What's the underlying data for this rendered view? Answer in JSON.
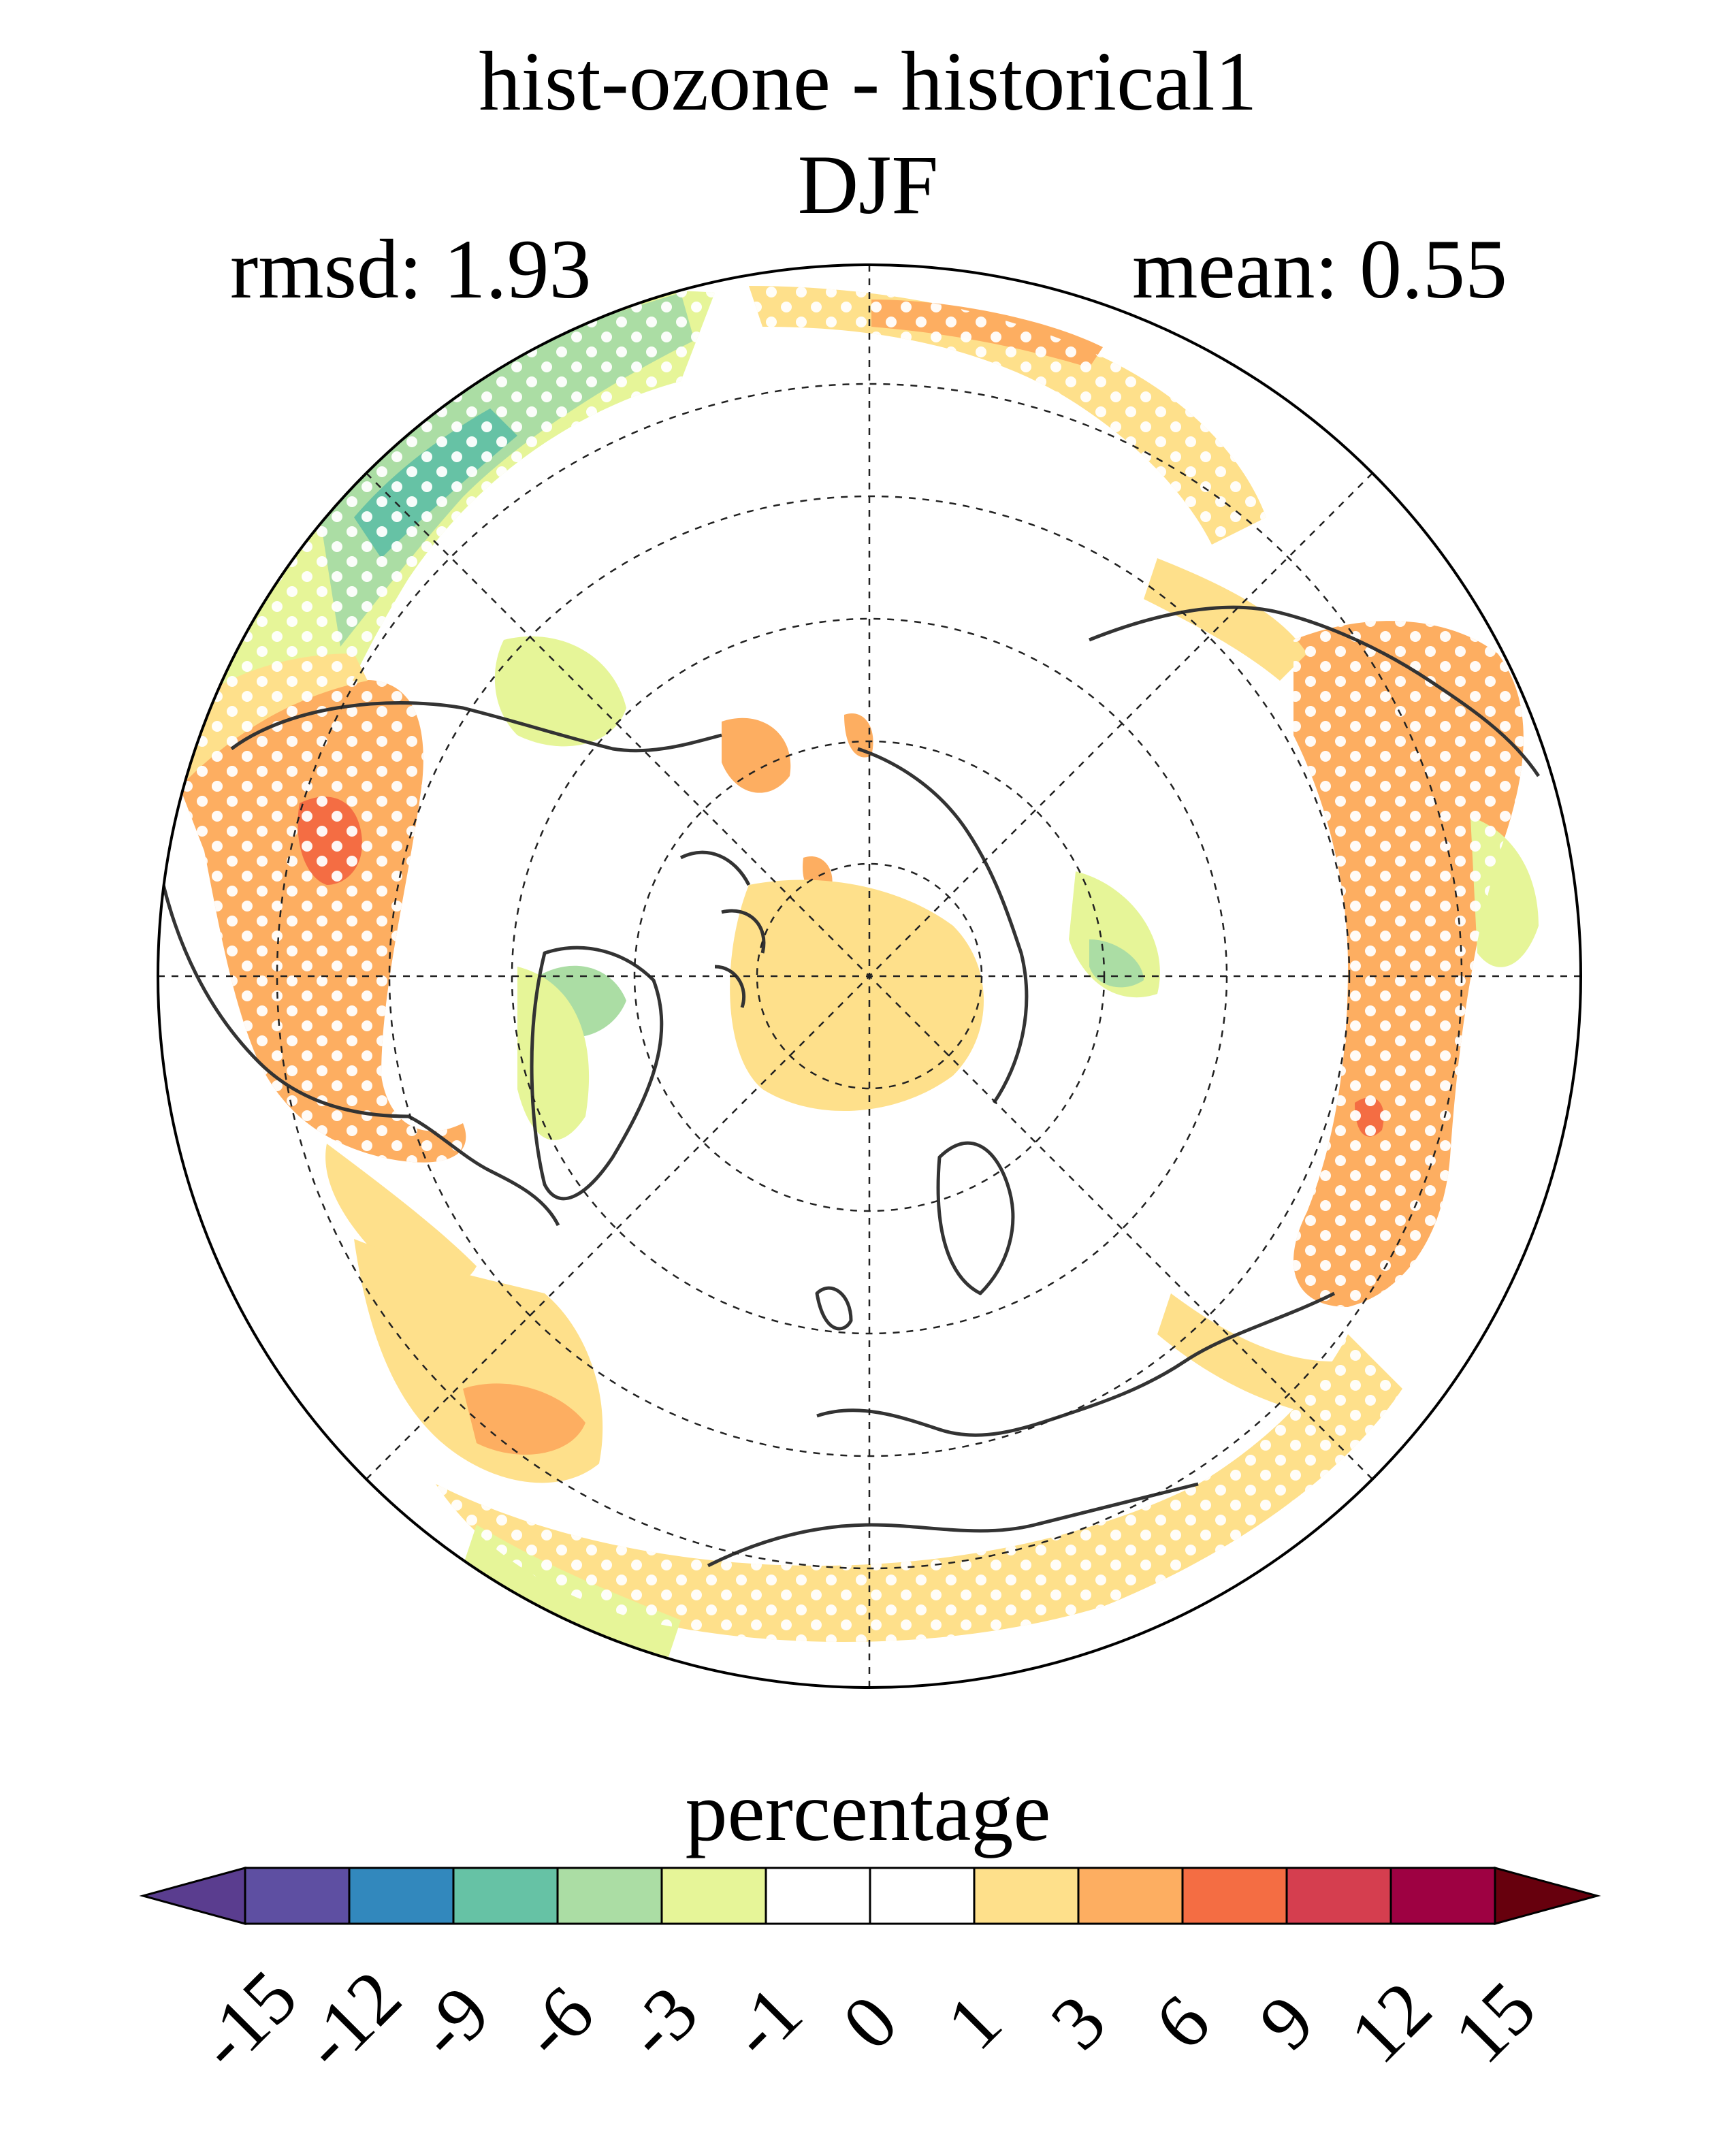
{
  "title": {
    "line1": "hist-ozone - historical1",
    "line2": "DJF"
  },
  "stats": {
    "rmsd_label": "rmsd: 1.93",
    "mean_label": "mean: 0.55"
  },
  "colorbar": {
    "label": "percentage",
    "levels": [
      "-15",
      "-12",
      "-9",
      "-6",
      "-3",
      "-1",
      "0",
      "1",
      "3",
      "6",
      "9",
      "12",
      "15"
    ],
    "colors": [
      "#5a3d8f",
      "#5e4fa2",
      "#3288bd",
      "#66c2a5",
      "#abdda4",
      "#e6f598",
      "#ffffff",
      "#ffffff",
      "#fee08b",
      "#fdae61",
      "#f46d43",
      "#d53e4f",
      "#9e0142",
      "#67000d"
    ]
  },
  "map": {
    "projection": "north-polar-stereographic",
    "stippling": "significance-dots",
    "coastline_color": "#333333"
  }
}
